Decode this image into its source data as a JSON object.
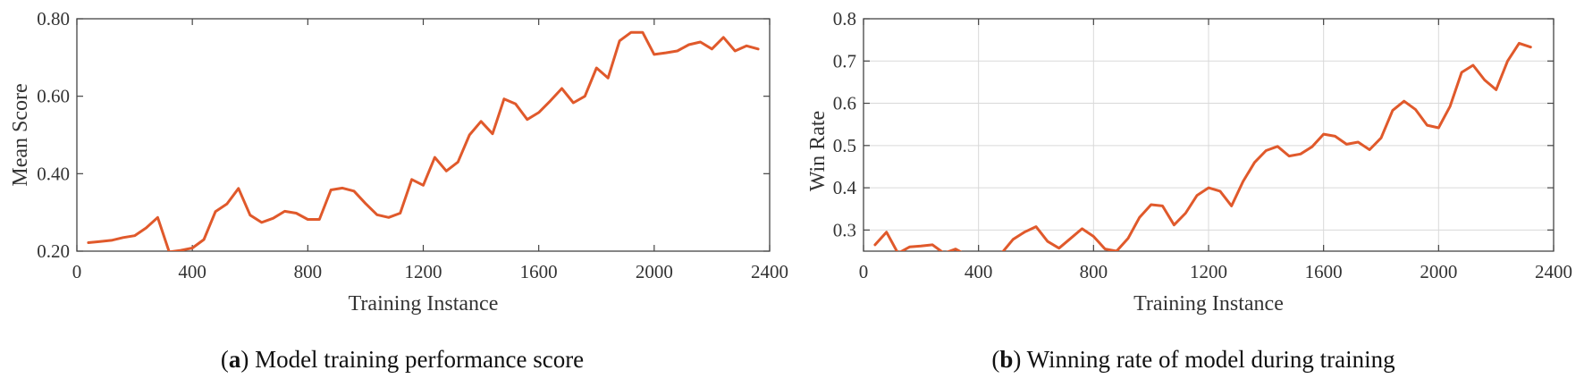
{
  "chart_data": [
    {
      "type": "line",
      "panel_letter": "a",
      "caption": ") Model training performance score",
      "xlabel": "Training Instance",
      "ylabel": "Mean Score",
      "xlim": [
        0,
        2400
      ],
      "ylim": [
        0.2,
        0.8
      ],
      "xticks": [
        0,
        400,
        800,
        1200,
        1600,
        2000,
        2400
      ],
      "xtick_labels": [
        "0",
        "400",
        "800",
        "1200",
        "1600",
        "2000",
        "2400"
      ],
      "yticks": [
        0.2,
        0.4,
        0.6,
        0.8
      ],
      "ytick_labels": [
        "0.20",
        "0.40",
        "0.60",
        "0.80"
      ],
      "grid": false,
      "series": [
        {
          "color": "#e0592b",
          "x": [
            40,
            80,
            120,
            160,
            200,
            240,
            280,
            320,
            360,
            400,
            440,
            480,
            520,
            560,
            600,
            640,
            680,
            720,
            760,
            800,
            840,
            880,
            920,
            960,
            1000,
            1040,
            1080,
            1120,
            1160,
            1200,
            1240,
            1280,
            1320,
            1360,
            1400,
            1440,
            1480,
            1520,
            1560,
            1600,
            1640,
            1680,
            1720,
            1760,
            1800,
            1840,
            1880,
            1920,
            1960,
            2000,
            2040,
            2080,
            2120,
            2160,
            2200,
            2240,
            2280,
            2320,
            2360
          ],
          "y": [
            0.222,
            0.225,
            0.228,
            0.235,
            0.24,
            0.26,
            0.287,
            0.198,
            0.202,
            0.208,
            0.23,
            0.302,
            0.322,
            0.362,
            0.293,
            0.274,
            0.285,
            0.303,
            0.298,
            0.282,
            0.282,
            0.358,
            0.363,
            0.355,
            0.323,
            0.294,
            0.287,
            0.298,
            0.385,
            0.37,
            0.442,
            0.407,
            0.43,
            0.5,
            0.535,
            0.503,
            0.593,
            0.58,
            0.54,
            0.558,
            0.588,
            0.62,
            0.583,
            0.6,
            0.673,
            0.647,
            0.743,
            0.765,
            0.765,
            0.708,
            0.712,
            0.717,
            0.733,
            0.74,
            0.722,
            0.752,
            0.717,
            0.73,
            0.722
          ]
        }
      ]
    },
    {
      "type": "line",
      "panel_letter": "b",
      "caption": ") Winning rate of model during training",
      "xlabel": "Training Instance",
      "ylabel": "Win Rate",
      "xlim": [
        0,
        2400
      ],
      "ylim": [
        0.25,
        0.8
      ],
      "xticks": [
        0,
        400,
        800,
        1200,
        1600,
        2000,
        2400
      ],
      "xtick_labels": [
        "0",
        "400",
        "800",
        "1200",
        "1600",
        "2000",
        "2400"
      ],
      "yticks": [
        0.3,
        0.4,
        0.5,
        0.6,
        0.7,
        0.8
      ],
      "ytick_labels": [
        "0.3",
        "0.4",
        "0.5",
        "0.6",
        "0.7",
        "0.8"
      ],
      "grid": true,
      "series": [
        {
          "color": "#e0592b",
          "x": [
            40,
            80,
            120,
            160,
            200,
            240,
            280,
            320,
            360,
            400,
            440,
            480,
            520,
            560,
            600,
            640,
            680,
            720,
            760,
            800,
            840,
            880,
            920,
            960,
            1000,
            1040,
            1080,
            1120,
            1160,
            1200,
            1240,
            1280,
            1320,
            1360,
            1400,
            1440,
            1480,
            1520,
            1560,
            1600,
            1640,
            1680,
            1720,
            1760,
            1800,
            1840,
            1880,
            1920,
            1960,
            2000,
            2040,
            2080,
            2120,
            2160,
            2200,
            2240,
            2280,
            2320
          ],
          "y": [
            0.265,
            0.295,
            0.245,
            0.26,
            0.262,
            0.265,
            0.245,
            0.255,
            0.24,
            0.235,
            0.24,
            0.245,
            0.278,
            0.295,
            0.308,
            0.273,
            0.257,
            0.28,
            0.303,
            0.285,
            0.255,
            0.25,
            0.28,
            0.33,
            0.36,
            0.357,
            0.312,
            0.34,
            0.382,
            0.4,
            0.392,
            0.357,
            0.415,
            0.46,
            0.488,
            0.498,
            0.475,
            0.48,
            0.497,
            0.527,
            0.522,
            0.503,
            0.508,
            0.49,
            0.518,
            0.583,
            0.605,
            0.585,
            0.548,
            0.542,
            0.593,
            0.673,
            0.69,
            0.655,
            0.632,
            0.7,
            0.742,
            0.733
          ]
        }
      ]
    }
  ]
}
